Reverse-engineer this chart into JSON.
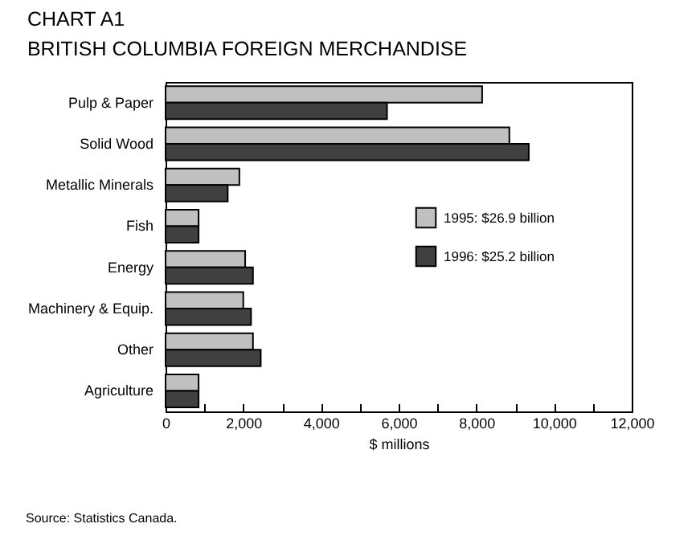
{
  "chart_data": {
    "type": "bar",
    "orientation": "horizontal",
    "title": "CHART A1",
    "subtitle": "BRITISH COLUMBIA FOREIGN MERCHANDISE",
    "xlabel": "$ millions",
    "categories": [
      "Pulp & Paper",
      "Solid Wood",
      "Metallic Minerals",
      "Fish",
      "Energy",
      "Machinery & Equip.",
      "Other",
      "Agriculture"
    ],
    "series": [
      {
        "name": "1995: $26.9 billion",
        "color": "#c0c0c0",
        "values": [
          8150,
          8850,
          1900,
          850,
          2050,
          2000,
          2250,
          850
        ]
      },
      {
        "name": "1996: $25.2 billion",
        "color": "#404040",
        "values": [
          5700,
          9350,
          1600,
          850,
          2250,
          2200,
          2450,
          850
        ]
      }
    ],
    "xlim": [
      0,
      12000
    ],
    "xticks": [
      0,
      {
        "value": 1000,
        "label": null
      },
      {
        "value": 2000,
        "label": "2,000"
      },
      {
        "value": 3000,
        "label": null
      },
      {
        "value": 4000,
        "label": "4,000"
      },
      {
        "value": 5000,
        "label": null
      },
      {
        "value": 6000,
        "label": "6,000"
      },
      {
        "value": 7000,
        "label": null
      },
      {
        "value": 8000,
        "label": "8,000"
      },
      {
        "value": 9000,
        "label": null
      },
      {
        "value": 10000,
        "label": "10,000"
      },
      {
        "value": 11000,
        "label": null
      },
      {
        "value": 12000,
        "label": "12,000"
      }
    ],
    "grid": false,
    "legend": "right",
    "annotations": [
      "Source: Statistics Canada."
    ]
  }
}
